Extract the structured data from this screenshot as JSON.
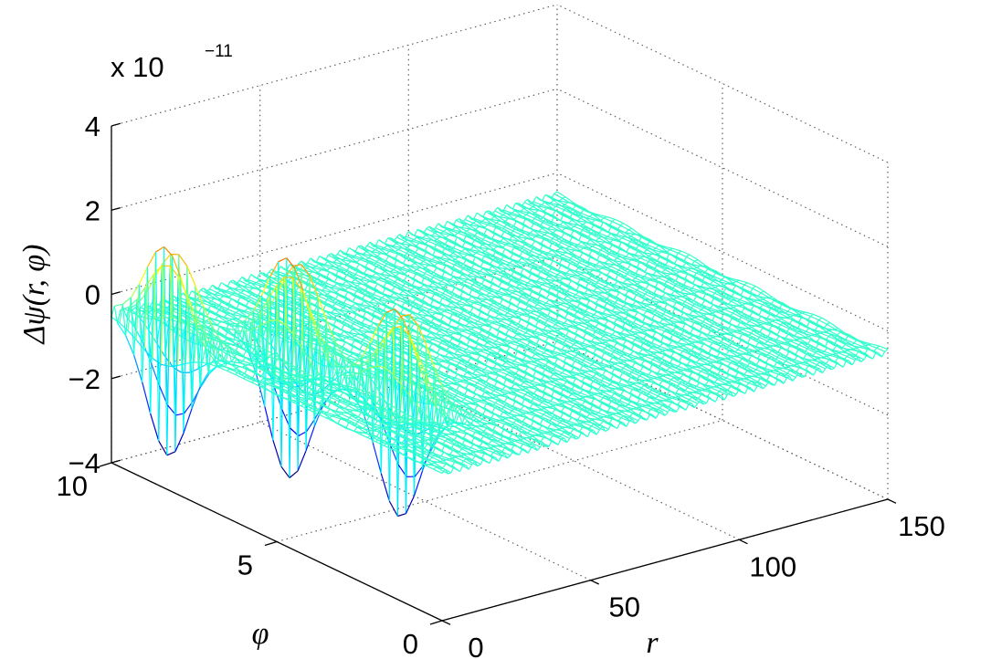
{
  "chart_data": {
    "type": "surface",
    "title": "",
    "xlabel": "r",
    "ylabel": "φ",
    "zlabel": "Δψ(r, φ)",
    "z_exponent_label": "x 10",
    "z_exponent": "−11",
    "xlim": [
      0,
      150
    ],
    "ylim": [
      0,
      10
    ],
    "zlim": [
      -4,
      4
    ],
    "x_ticks": [
      "0",
      "50",
      "100",
      "150"
    ],
    "y_ticks": [
      "0",
      "5",
      "10"
    ],
    "z_ticks": [
      "−4",
      "−2",
      "0",
      "2",
      "4"
    ],
    "z_tick_values": [
      -4,
      -2,
      0,
      2,
      4
    ],
    "grid": true,
    "colormap": "jet",
    "surface": {
      "r_range": [
        0,
        150
      ],
      "phi_range": [
        0,
        10
      ],
      "baseline": -0.5,
      "oscillation_amplitude": 0.08,
      "peaks": [
        {
          "r": 3,
          "phi": 8.5,
          "amplitude": 3.0
        },
        {
          "r": 22,
          "phi": 6.5,
          "amplitude": 3.2
        },
        {
          "r": 25,
          "phi": 3.5,
          "amplitude": 3.0
        }
      ]
    }
  }
}
